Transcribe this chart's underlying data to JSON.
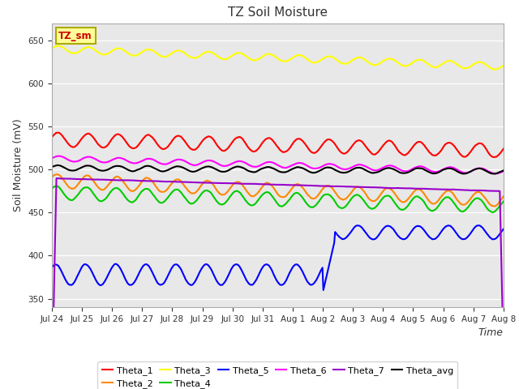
{
  "title": "TZ Soil Moisture",
  "ylabel": "Soil Moisture (mV)",
  "xlabel": "Time",
  "ylim": [
    340,
    670
  ],
  "yticks": [
    350,
    400,
    450,
    500,
    550,
    600,
    650
  ],
  "bg_color": "#e8e8e8",
  "fig_color": "#ffffff",
  "series": {
    "Theta_1": {
      "color": "#ff0000",
      "lw": 1.5
    },
    "Theta_2": {
      "color": "#ff8800",
      "lw": 1.5
    },
    "Theta_3": {
      "color": "#ffff00",
      "lw": 1.5
    },
    "Theta_4": {
      "color": "#00cc00",
      "lw": 1.5
    },
    "Theta_5": {
      "color": "#0000ff",
      "lw": 1.5
    },
    "Theta_6": {
      "color": "#ff00ff",
      "lw": 1.5
    },
    "Theta_7": {
      "color": "#9900cc",
      "lw": 1.5
    },
    "Theta_avg": {
      "color": "#000000",
      "lw": 1.5
    }
  },
  "xtick_labels": [
    "Jul 24",
    "Jul 25",
    "Jul 26",
    "Jul 27",
    "Jul 28",
    "Jul 29",
    "Jul 30",
    "Jul 31",
    "Aug 1",
    "Aug 2",
    "Aug 3",
    "Aug 4",
    "Aug 5",
    "Aug 6",
    "Aug 7",
    "Aug 8"
  ],
  "legend_row1": [
    "Theta_1",
    "Theta_2",
    "Theta_3",
    "Theta_4",
    "Theta_5",
    "Theta_6"
  ],
  "legend_row2": [
    "Theta_7",
    "Theta_avg"
  ],
  "n_points": 500,
  "duration_days": 15.0
}
